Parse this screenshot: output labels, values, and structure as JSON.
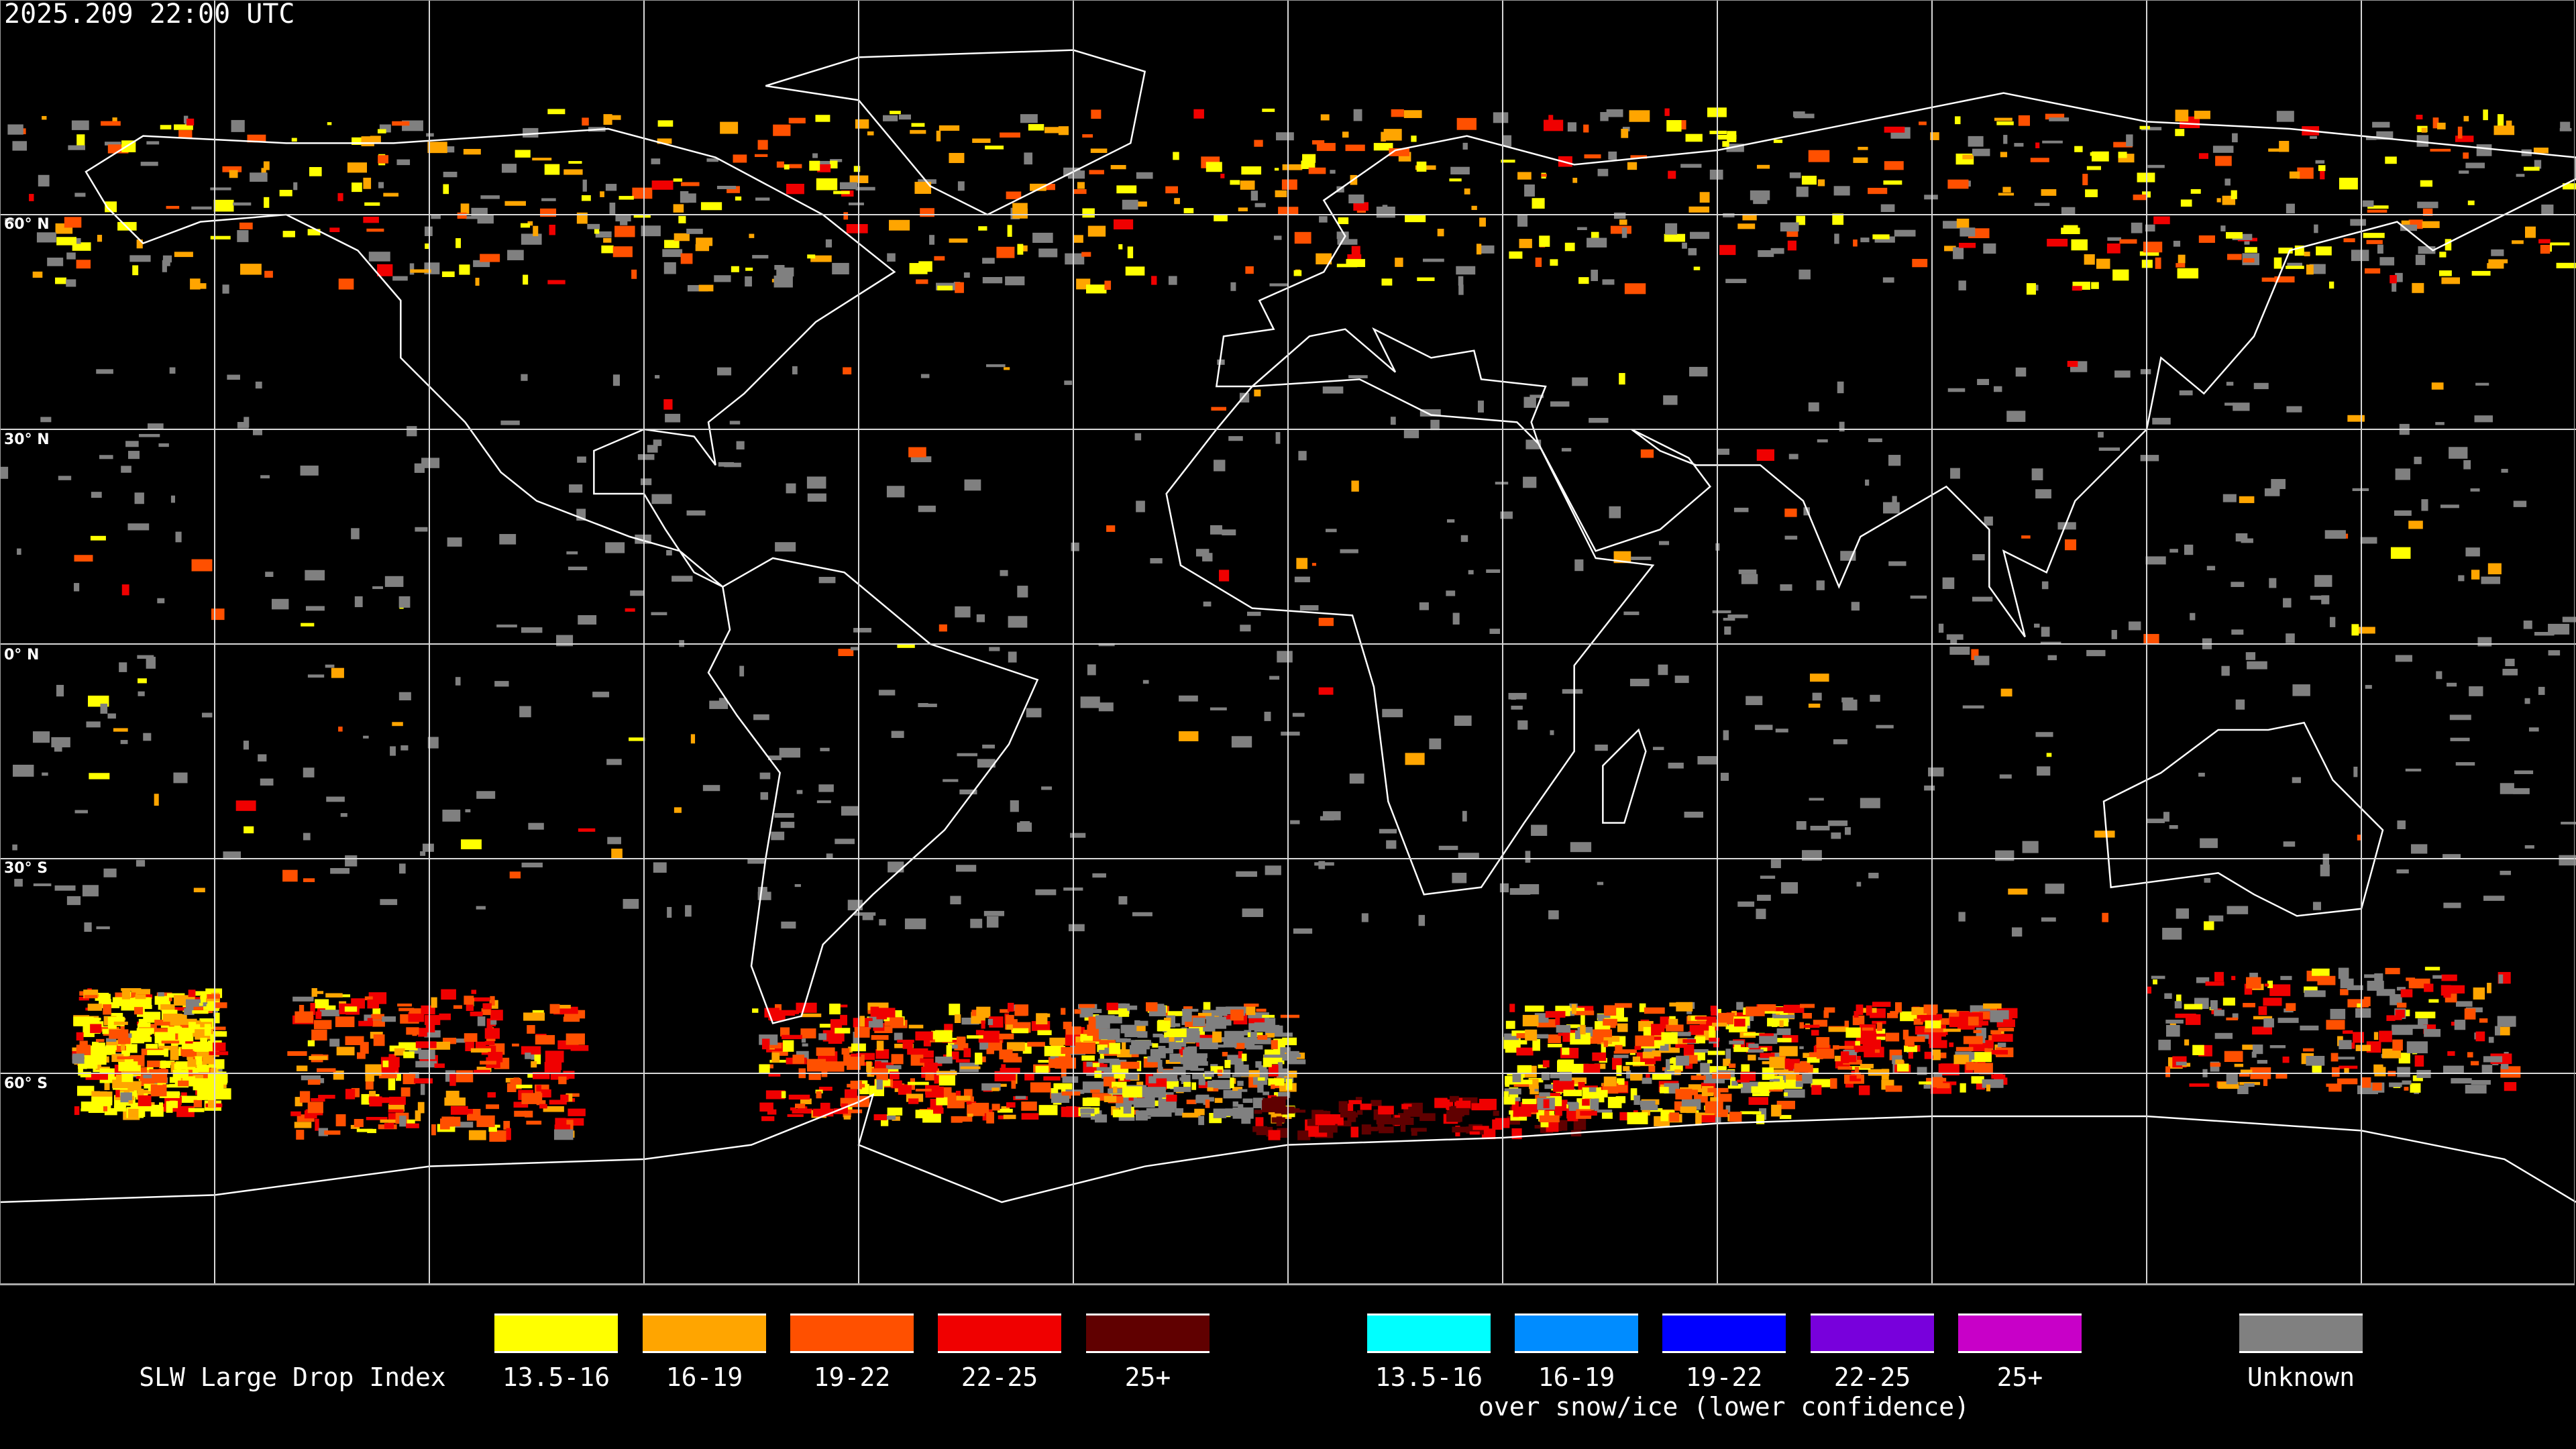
{
  "title": "2025.209 22:00 UTC",
  "latitude_labels": [
    "60° N",
    "30° N",
    "0° N",
    "30° S",
    "60° S"
  ],
  "legend": {
    "title": "SLW Large Drop Index",
    "primary": [
      {
        "label": "13.5-16",
        "color": "#ffff00"
      },
      {
        "label": "16-19",
        "color": "#ffa500"
      },
      {
        "label": "19-22",
        "color": "#ff5000"
      },
      {
        "label": "22-25",
        "color": "#f00000"
      },
      {
        "label": "25+",
        "color": "#600000"
      }
    ],
    "snow_ice": [
      {
        "label": "13.5-16",
        "color": "#00ffff"
      },
      {
        "label": "16-19",
        "color": "#008cff"
      },
      {
        "label": "19-22",
        "color": "#0000ff"
      },
      {
        "label": "22-25",
        "color": "#7800dc"
      },
      {
        "label": "25+",
        "color": "#c800c8"
      }
    ],
    "snow_ice_caption": "over snow/ice (lower confidence)",
    "unknown": {
      "label": "Unknown",
      "color": "#808080"
    }
  }
}
